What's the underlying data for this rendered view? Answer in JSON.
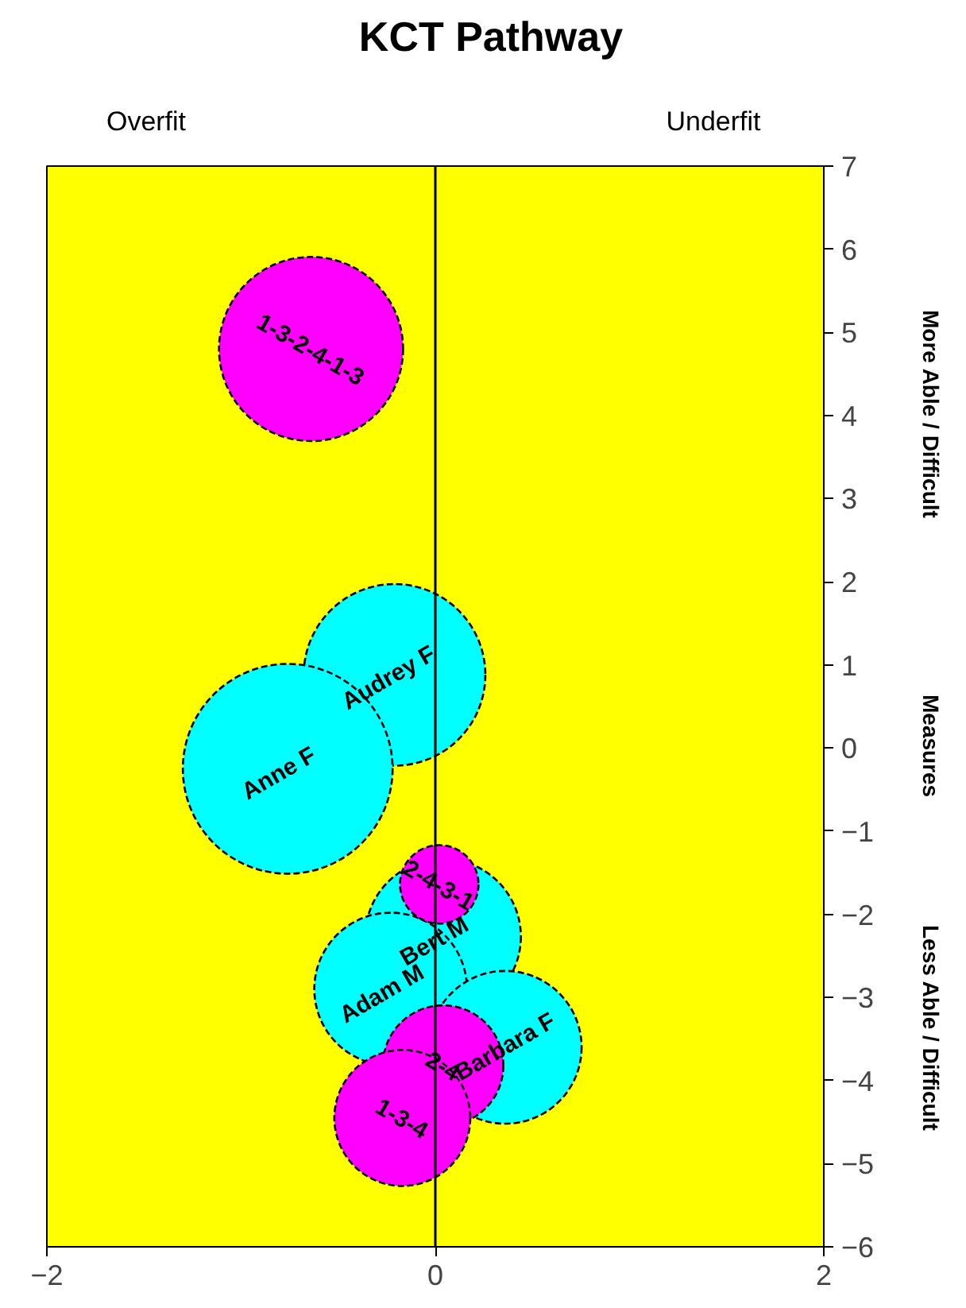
{
  "chart_data": {
    "type": "bubble",
    "title": "KCT Pathway",
    "xlim": [
      -2,
      2
    ],
    "xticks": [
      -2,
      0,
      2
    ],
    "ylim": [
      -6,
      7
    ],
    "yticks": [
      7,
      6,
      5,
      4,
      3,
      2,
      1,
      0,
      -1,
      -2,
      -3,
      -4,
      -5,
      -6
    ],
    "grid": false,
    "series": [
      {
        "color": "#00ffff",
        "x": [
          -0.21,
          -0.76,
          0.04,
          -0.23,
          0.36
        ],
        "values": [
          0.88,
          -0.25,
          -2.27,
          -2.9,
          -3.6
        ],
        "sizes": [
          0.75,
          1,
          0.55,
          0.53,
          0.53
        ]
      },
      {
        "color": "#ff00ff",
        "x": [
          -0.64,
          0.02,
          0.04,
          -0.17
        ],
        "values": [
          4.8,
          -1.64,
          -3.82,
          -4.45
        ],
        "sizes": [
          0.77,
          0.14,
          0.33,
          0.42
        ]
      }
    ],
    "ref_lines": [
      {
        "axis": "x",
        "value": 0,
        "color": "#000000",
        "line_style": "solid"
      }
    ],
    "annotations": [
      {
        "text": "Audrey   F",
        "x": -0.21,
        "y": 0.88
      },
      {
        "text": "Anne    F",
        "x": -0.76,
        "y": -0.25
      },
      {
        "text": "Bert    M",
        "x": 0.04,
        "y": -2.27
      },
      {
        "text": "Adam    M",
        "x": -0.23,
        "y": -2.9
      },
      {
        "text": "Barbara F",
        "x": 0.36,
        "y": -3.6
      },
      {
        "text": "1-3-2-4-1-3",
        "x": -0.64,
        "y": 4.8
      },
      {
        "text": "2-4-3-1",
        "x": 0.02,
        "y": -1.64
      },
      {
        "text": "2-4",
        "x": 0.04,
        "y": -3.82
      },
      {
        "text": "1-3-4",
        "x": -0.17,
        "y": -4.45
      },
      "Overfit",
      "Underfit",
      "More Able / Difficult",
      "Measures",
      "Less Able / Difficult"
    ]
  }
}
